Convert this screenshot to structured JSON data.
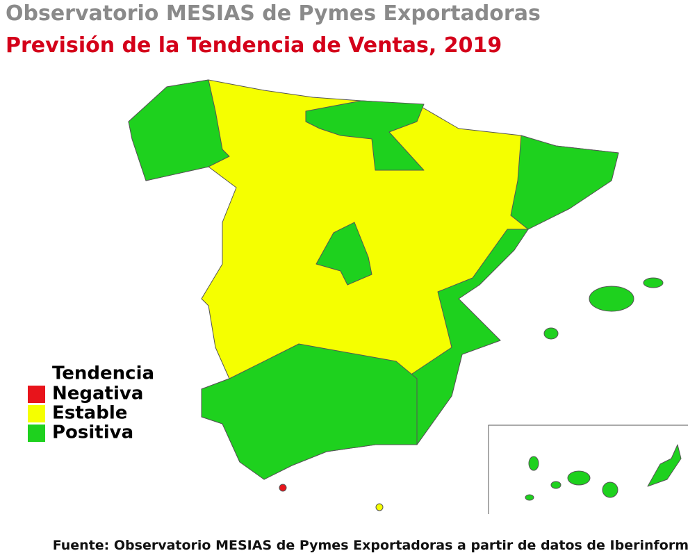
{
  "title": "Observatorio MESIAS de Pymes Exportadoras",
  "subtitle": "Previsión de la Tendencia de Ventas, 2019",
  "legend": {
    "title": "Tendencia",
    "items": [
      {
        "label": "Negativa",
        "color": "#e8141b"
      },
      {
        "label": "Estable",
        "color": "#f5ff00"
      },
      {
        "label": "Positiva",
        "color": "#1ed11e"
      }
    ]
  },
  "source": "Fuente: Observatorio MESIAS de Pymes Exportadoras a partir de datos de Iberinform"
}
